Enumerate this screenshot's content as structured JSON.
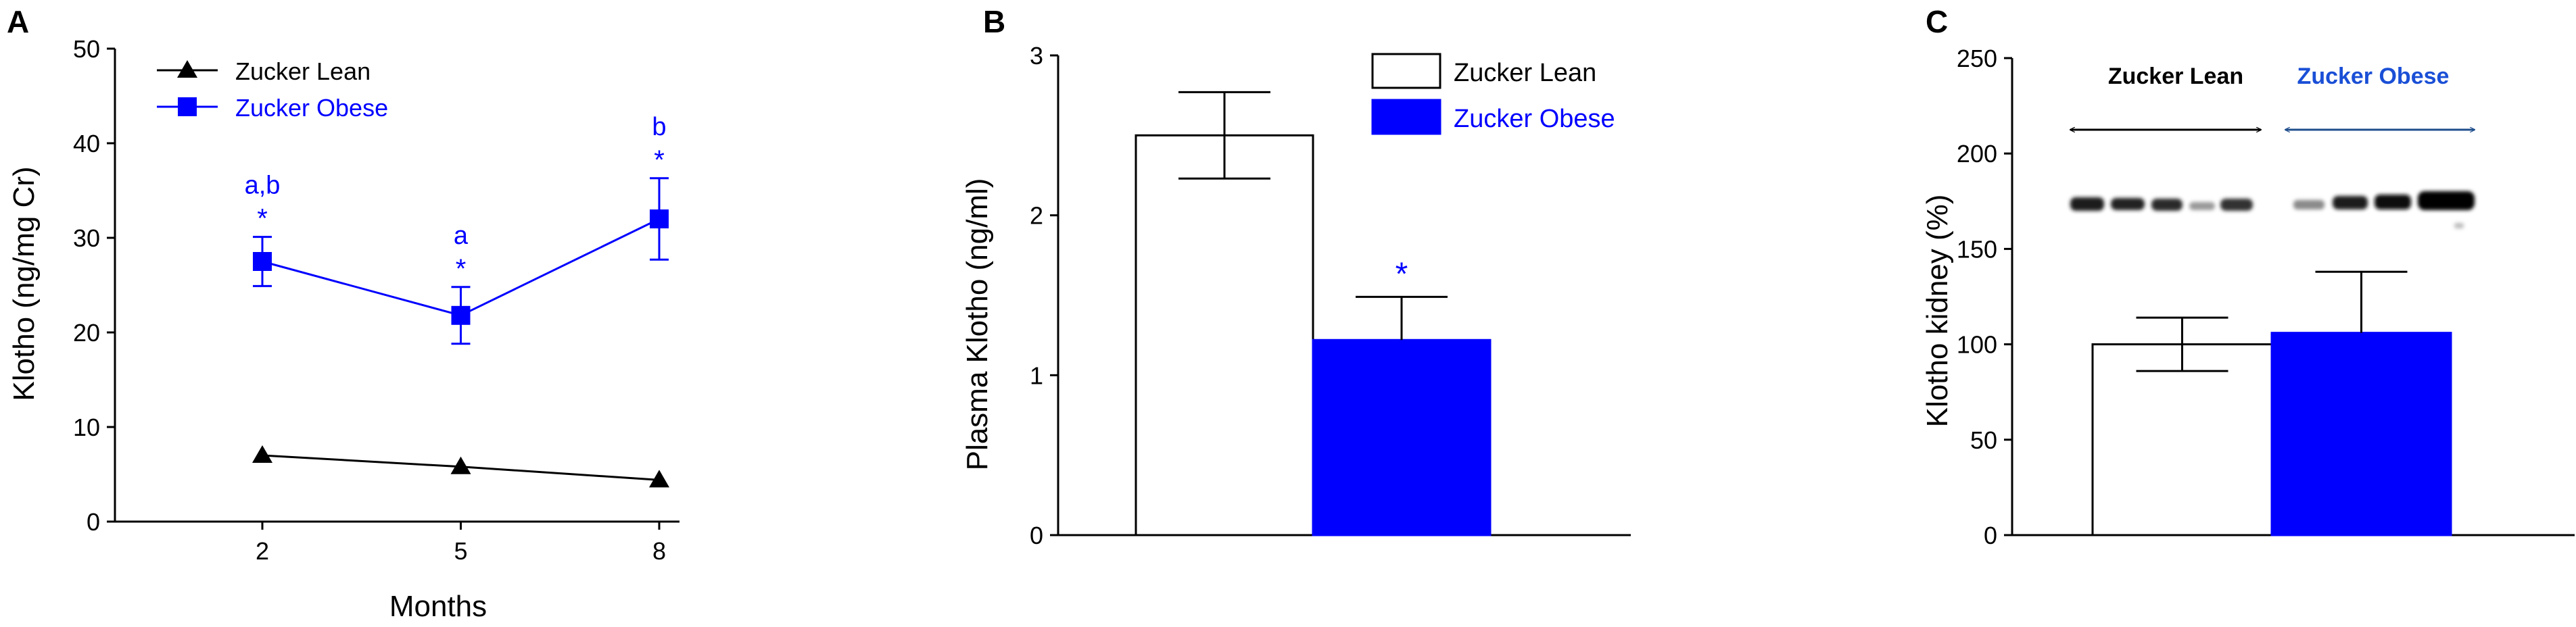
{
  "colors": {
    "lean": "#000000",
    "obese": "#0000ff",
    "axis": "#000000"
  },
  "chart_data": [
    {
      "panel": "A",
      "type": "line",
      "xlabel": "Months",
      "ylabel": "Klotho (ng/mg Cr)",
      "x": [
        2,
        5,
        8
      ],
      "x_tick_labels": [
        "2",
        "5",
        "8"
      ],
      "y_ticks": [
        "0",
        "10",
        "20",
        "30",
        "40",
        "50"
      ],
      "ylim": [
        0,
        50
      ],
      "legend_position": "top-left",
      "series": [
        {
          "name": "Zucker Lean",
          "marker": "triangle",
          "color": "#000000",
          "values": [
            7.0,
            5.8,
            4.4
          ],
          "errors": [
            0,
            0,
            0
          ],
          "annotations": [
            "",
            "",
            ""
          ]
        },
        {
          "name": "Zucker Obese",
          "marker": "square",
          "color": "#0000ff",
          "values": [
            27.5,
            21.8,
            32.0
          ],
          "errors": [
            2.6,
            3.0,
            4.3
          ],
          "annotations": [
            "a,b",
            "a",
            "b"
          ],
          "significance": [
            "*",
            "*",
            "*"
          ]
        }
      ]
    },
    {
      "panel": "B",
      "type": "bar",
      "ylabel": "Plasma Klotho (ng/ml)",
      "y_ticks": [
        "0",
        "1",
        "2",
        "3"
      ],
      "ylim": [
        0,
        3
      ],
      "legend_position": "top-right",
      "series": [
        {
          "name": "Zucker Lean",
          "fill": "#ffffff",
          "value": 2.5,
          "error": 0.27,
          "significance": ""
        },
        {
          "name": "Zucker Obese",
          "fill": "#0000ff",
          "value": 1.22,
          "error": 0.27,
          "significance": "*"
        }
      ]
    },
    {
      "panel": "C",
      "type": "bar",
      "ylabel": "Klotho kidney (%)",
      "y_ticks": [
        "0",
        "50",
        "100",
        "150",
        "200",
        "250"
      ],
      "ylim": [
        0,
        250
      ],
      "blot_labels": [
        "Zucker Lean",
        "Zucker Obese"
      ],
      "series": [
        {
          "name": "Zucker Lean",
          "fill": "#ffffff",
          "value": 100,
          "error": 14
        },
        {
          "name": "Zucker Obese",
          "fill": "#0000ff",
          "value": 106,
          "error": 32
        }
      ]
    }
  ]
}
